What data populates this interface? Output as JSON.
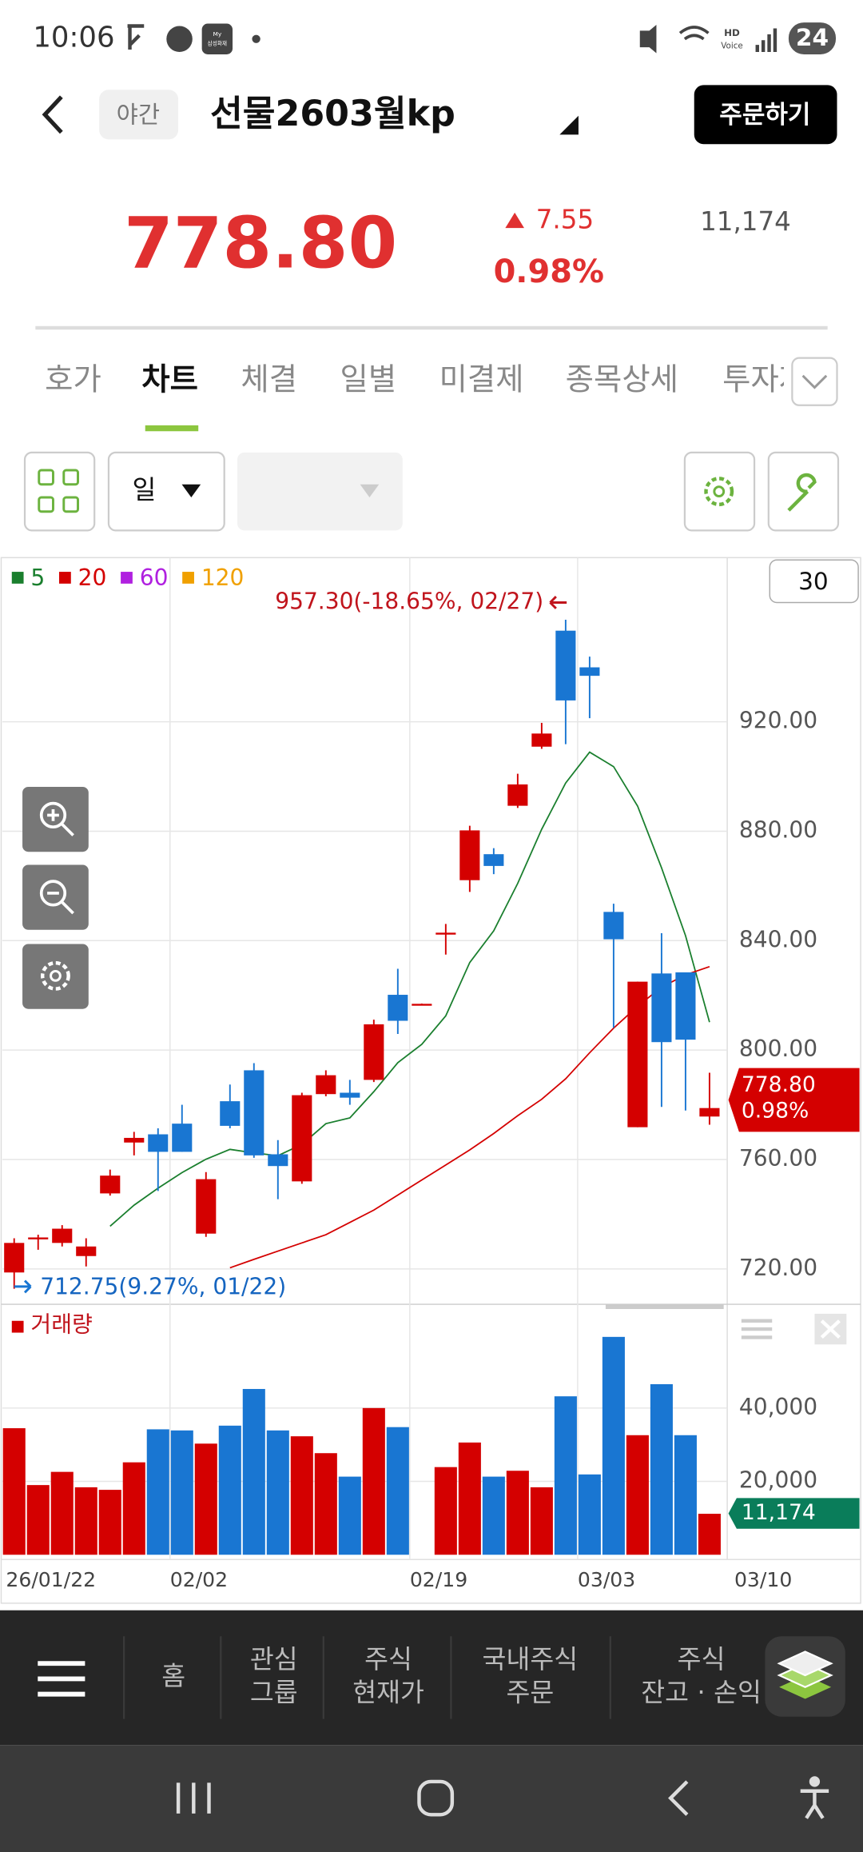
{
  "status_bar": {
    "time": "10:06",
    "battery": "24",
    "app_icon_text": [
      "My",
      "삼성화재"
    ],
    "network_text": [
      "HD",
      "Voice"
    ]
  },
  "header": {
    "badge": "야간",
    "title": "선물2603월kp",
    "order_button": "주문하기"
  },
  "quote": {
    "price": "778.80",
    "change": "7.55",
    "change_rate": "0.98%",
    "volume": "11,174"
  },
  "tabs": [
    "호가",
    "차트",
    "체결",
    "일별",
    "미결제",
    "종목상세",
    "투자자"
  ],
  "toolbar": {
    "period": "일",
    "count": "30"
  },
  "chart": {
    "type": "candlestick",
    "legend": [
      {
        "name": "5",
        "color": "#1a7f2e"
      },
      {
        "name": "20",
        "color": "#d40000"
      },
      {
        "name": "60",
        "color": "#b020e0"
      },
      {
        "name": "120",
        "color": "#f0a000"
      }
    ],
    "colors": {
      "up": "#d40000",
      "down": "#1976d2"
    },
    "x_ticks": [
      {
        "value": 0,
        "label": "26/01/22"
      },
      {
        "value": 7,
        "label": "02/02"
      },
      {
        "value": 17,
        "label": "02/19"
      },
      {
        "value": 24,
        "label": "03/03"
      },
      {
        "value": 30,
        "label": "03/10"
      }
    ],
    "open": [
      718.7,
      731.0,
      729.5,
      724.7,
      747.6,
      766.2,
      769.2,
      773.1,
      732.9,
      781.3,
      792.6,
      761.9,
      752.0,
      783.9,
      784.4,
      789.1,
      820.2,
      816.7,
      842.7,
      862.1,
      871.6,
      889.3,
      910.9,
      953.3,
      939.9,
      850.5,
      771.8,
      828.0,
      828.4,
      775.7
    ],
    "high": [
      731.2,
      732.5,
      736.0,
      731.2,
      756.3,
      770.1,
      771.4,
      780.0,
      755.4,
      787.4,
      795.2,
      767.1,
      784.4,
      792.6,
      789.1,
      811.1,
      829.7,
      817.0,
      846.1,
      882.0,
      873.8,
      901.0,
      919.6,
      957.3,
      943.8,
      853.5,
      825.0,
      842.7,
      828.4,
      791.7
    ],
    "low": [
      712.75,
      727.0,
      728.2,
      720.9,
      746.8,
      761.5,
      748.5,
      762.8,
      731.7,
      771.4,
      760.6,
      745.5,
      751.1,
      783.1,
      780.0,
      788.3,
      805.9,
      816.5,
      834.9,
      857.8,
      864.3,
      888.5,
      910.1,
      911.8,
      921.3,
      808.1,
      771.8,
      779.2,
      777.9,
      772.7
    ],
    "close": [
      729.5,
      731.5,
      734.7,
      728.2,
      754.1,
      767.9,
      762.8,
      762.8,
      752.8,
      772.3,
      761.5,
      757.6,
      783.5,
      790.8,
      782.6,
      809.4,
      810.7,
      816.9,
      842.9,
      880.3,
      867.3,
      897.1,
      915.7,
      927.8,
      936.8,
      840.5,
      825.0,
      802.9,
      803.8,
      778.8
    ],
    "ma5": [
      null,
      null,
      null,
      null,
      735.6,
      743.3,
      749.5,
      755.2,
      760.1,
      763.7,
      762.4,
      761.4,
      765.5,
      773.1,
      775.2,
      784.8,
      795.4,
      802.1,
      812.5,
      832.0,
      843.6,
      860.9,
      880.7,
      897.6,
      908.9,
      903.6,
      889.2,
      866.6,
      841.8,
      810.2
    ],
    "ma20": [
      null,
      null,
      null,
      null,
      null,
      null,
      null,
      null,
      null,
      720.4,
      723.5,
      726.5,
      729.5,
      732.5,
      737.0,
      741.5,
      747.0,
      752.5,
      758.0,
      763.5,
      769.5,
      776.0,
      782.0,
      789.5,
      799.0,
      808.0,
      816.0,
      823.0,
      827.5,
      830.5
    ],
    "ylim": [
      707.5,
      980
    ],
    "yticks": [
      {
        "value": 720,
        "label": "720.00"
      },
      {
        "value": 760,
        "label": "760.00"
      },
      {
        "value": 800,
        "label": "800.00"
      },
      {
        "value": 840,
        "label": "840.00"
      },
      {
        "value": 880,
        "label": "880.00"
      },
      {
        "value": 920,
        "label": "920.00"
      }
    ],
    "high_label": "957.30(-18.65%, 02/27)",
    "low_label": "712.75(9.27%, 01/22)",
    "price_tag": [
      "778.80",
      "0.98%"
    ],
    "volume": {
      "label": "거래량",
      "values": [
        34500,
        19000,
        22600,
        18400,
        17700,
        25200,
        34200,
        33900,
        30300,
        35200,
        45200,
        33900,
        32300,
        27700,
        21300,
        40000,
        34800,
        null,
        23900,
        30600,
        21300,
        22900,
        18400,
        43200,
        21900,
        59400,
        32600,
        46500,
        32600,
        11174
      ],
      "ylim": [
        0,
        67000
      ],
      "yticks": [
        {
          "value": 20000,
          "label": "20,000"
        },
        {
          "value": 40000,
          "label": "40,000"
        }
      ],
      "tag": "11,174",
      "tag_color": "#0a7d5a"
    }
  },
  "nav": [
    [
      "홈"
    ],
    [
      "관심",
      "그룹"
    ],
    [
      "주식",
      "현재가"
    ],
    [
      "국내주식",
      "주문"
    ],
    [
      "주식",
      "잔고 · 손익"
    ]
  ]
}
